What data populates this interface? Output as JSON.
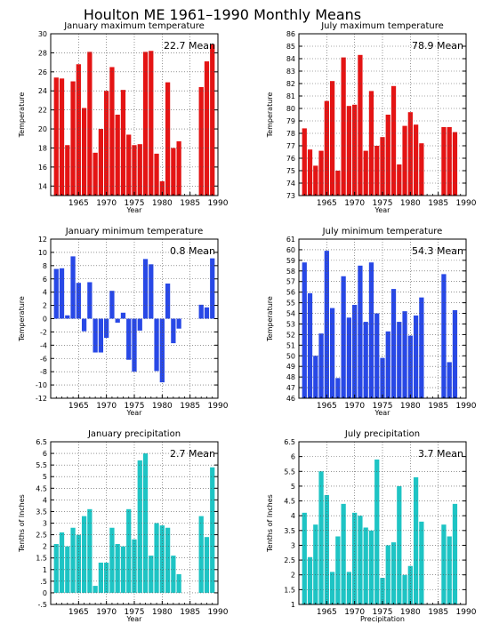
{
  "page_title": "Houlton ME   1961–1990 Monthly Means",
  "chart_data": [
    {
      "type": "bar",
      "title": "January maximum temperature",
      "xlabel": "Year",
      "ylabel": "Temperature",
      "mean_label": "22.7 Mean",
      "color": "#e41414",
      "xlim": [
        1960,
        1990
      ],
      "ylim": [
        13,
        30
      ],
      "yticks": [
        14,
        16,
        18,
        20,
        22,
        24,
        26,
        28,
        30
      ],
      "xticks": [
        1965,
        1970,
        1975,
        1980,
        1985,
        1990
      ],
      "grid": true,
      "x": [
        1961,
        1962,
        1963,
        1964,
        1965,
        1966,
        1967,
        1968,
        1969,
        1970,
        1971,
        1972,
        1973,
        1974,
        1975,
        1976,
        1977,
        1978,
        1979,
        1980,
        1981,
        1982,
        1983,
        1984,
        1985,
        1986,
        1987,
        1988,
        1989,
        1990
      ],
      "values": [
        25.4,
        25.3,
        18.3,
        25.0,
        26.8,
        22.2,
        28.1,
        17.5,
        20.0,
        24.0,
        26.5,
        21.5,
        24.1,
        19.4,
        18.3,
        18.4,
        28.1,
        28.2,
        17.4,
        14.5,
        24.9,
        18.0,
        18.7,
        null,
        null,
        null,
        24.4,
        27.1,
        28.9,
        null
      ]
    },
    {
      "type": "bar",
      "title": "July maximum temperature",
      "xlabel": "Year",
      "ylabel": "Temperature",
      "mean_label": "78.9 Mean",
      "color": "#e41414",
      "xlim": [
        1960,
        1990
      ],
      "ylim": [
        73,
        86
      ],
      "yticks": [
        73,
        74,
        75,
        76,
        77,
        78,
        79,
        80,
        81,
        82,
        83,
        84,
        85,
        86
      ],
      "xticks": [
        1965,
        1970,
        1975,
        1980,
        1985,
        1990
      ],
      "grid": true,
      "x": [
        1961,
        1962,
        1963,
        1964,
        1965,
        1966,
        1967,
        1968,
        1969,
        1970,
        1971,
        1972,
        1973,
        1974,
        1975,
        1976,
        1977,
        1978,
        1979,
        1980,
        1981,
        1982,
        1983,
        1984,
        1985,
        1986,
        1987,
        1988,
        1989,
        1990
      ],
      "values": [
        78.4,
        76.7,
        75.4,
        76.6,
        80.6,
        82.2,
        75.0,
        84.1,
        80.2,
        80.3,
        84.3,
        76.6,
        81.4,
        77.0,
        77.7,
        79.5,
        81.8,
        75.5,
        78.6,
        79.7,
        78.7,
        77.2,
        null,
        null,
        null,
        78.5,
        78.5,
        78.1,
        null,
        null
      ]
    },
    {
      "type": "bar",
      "title": "January minimum temperature",
      "xlabel": "Year",
      "ylabel": "Temperature",
      "mean_label": "0.8 Mean",
      "color": "#2848e6",
      "xlim": [
        1960,
        1990
      ],
      "ylim": [
        -12,
        12
      ],
      "yticks": [
        -12,
        -10,
        -8,
        -6,
        -4,
        -2,
        0,
        2,
        4,
        6,
        8,
        10,
        12
      ],
      "xticks": [
        1965,
        1970,
        1975,
        1980,
        1985,
        1990
      ],
      "grid": true,
      "x": [
        1961,
        1962,
        1963,
        1964,
        1965,
        1966,
        1967,
        1968,
        1969,
        1970,
        1971,
        1972,
        1973,
        1974,
        1975,
        1976,
        1977,
        1978,
        1979,
        1980,
        1981,
        1982,
        1983,
        1984,
        1985,
        1986,
        1987,
        1988,
        1989,
        1990
      ],
      "values": [
        7.5,
        7.6,
        0.5,
        9.4,
        5.4,
        -1.9,
        5.5,
        -5.1,
        -5.1,
        -2.9,
        4.2,
        -0.6,
        0.9,
        -6.2,
        -8.0,
        -1.8,
        9.0,
        8.2,
        -7.9,
        -9.6,
        5.3,
        -3.7,
        -1.5,
        null,
        null,
        null,
        2.1,
        1.7,
        9.1,
        null
      ]
    },
    {
      "type": "bar",
      "title": "July minimum temperature",
      "xlabel": "Year",
      "ylabel": "Temperature",
      "mean_label": "54.3 Mean",
      "color": "#2848e6",
      "xlim": [
        1960,
        1990
      ],
      "ylim": [
        46,
        61
      ],
      "yticks": [
        46,
        47,
        48,
        49,
        50,
        51,
        52,
        53,
        54,
        55,
        56,
        57,
        58,
        59,
        60,
        61
      ],
      "xticks": [
        1965,
        1970,
        1975,
        1980,
        1985,
        1990
      ],
      "grid": true,
      "x": [
        1961,
        1962,
        1963,
        1964,
        1965,
        1966,
        1967,
        1968,
        1969,
        1970,
        1971,
        1972,
        1973,
        1974,
        1975,
        1976,
        1977,
        1978,
        1979,
        1980,
        1981,
        1982,
        1983,
        1984,
        1985,
        1986,
        1987,
        1988,
        1989,
        1990
      ],
      "values": [
        58.8,
        55.9,
        50.0,
        52.1,
        59.9,
        54.5,
        47.9,
        57.5,
        53.6,
        54.8,
        58.5,
        53.2,
        58.8,
        54.0,
        49.8,
        52.3,
        56.3,
        53.2,
        54.2,
        51.9,
        53.8,
        55.5,
        null,
        null,
        null,
        57.7,
        49.4,
        54.3,
        null,
        null
      ]
    },
    {
      "type": "bar",
      "title": "January precipitation",
      "xlabel": "Year",
      "ylabel": "Tenths of Inches",
      "mean_label": "2.7 Mean",
      "color": "#1ec4c4",
      "xlim": [
        1960,
        1990
      ],
      "ylim": [
        -0.5,
        6.5
      ],
      "yticks": [
        -0.5,
        0,
        0.5,
        1,
        1.5,
        2,
        2.5,
        3,
        3.5,
        4,
        4.5,
        5,
        5.5,
        6,
        6.5
      ],
      "xticks": [
        1965,
        1970,
        1975,
        1980,
        1985,
        1990
      ],
      "grid": true,
      "x": [
        1961,
        1962,
        1963,
        1964,
        1965,
        1966,
        1967,
        1968,
        1969,
        1970,
        1971,
        1972,
        1973,
        1974,
        1975,
        1976,
        1977,
        1978,
        1979,
        1980,
        1981,
        1982,
        1983,
        1984,
        1985,
        1986,
        1987,
        1988,
        1989,
        1990
      ],
      "values": [
        2.1,
        2.6,
        2.0,
        2.8,
        2.5,
        3.3,
        3.6,
        0.3,
        1.3,
        1.3,
        2.8,
        2.1,
        2.0,
        3.6,
        2.3,
        5.7,
        6.0,
        1.6,
        3.0,
        2.9,
        2.8,
        1.6,
        0.8,
        null,
        null,
        null,
        3.3,
        2.4,
        5.4,
        null
      ]
    },
    {
      "type": "bar",
      "title": "July precipitation",
      "xlabel": "Precipitation",
      "ylabel": "Tenths of Inches",
      "mean_label": "3.7 Mean",
      "color": "#1ec4c4",
      "xlim": [
        1960,
        1990
      ],
      "ylim": [
        1,
        6.5
      ],
      "yticks": [
        1,
        1.5,
        2,
        2.5,
        3,
        3.5,
        4,
        4.5,
        5,
        5.5,
        6,
        6.5
      ],
      "xticks": [
        1965,
        1970,
        1975,
        1980,
        1985,
        1990
      ],
      "grid": true,
      "x": [
        1961,
        1962,
        1963,
        1964,
        1965,
        1966,
        1967,
        1968,
        1969,
        1970,
        1971,
        1972,
        1973,
        1974,
        1975,
        1976,
        1977,
        1978,
        1979,
        1980,
        1981,
        1982,
        1983,
        1984,
        1985,
        1986,
        1987,
        1988,
        1989,
        1990
      ],
      "values": [
        4.1,
        2.6,
        3.7,
        5.5,
        4.7,
        2.1,
        3.3,
        4.4,
        2.1,
        4.1,
        4.0,
        3.6,
        3.5,
        5.9,
        1.9,
        3.0,
        3.1,
        5.0,
        2.0,
        2.3,
        5.3,
        3.8,
        null,
        null,
        null,
        3.7,
        3.3,
        4.4,
        null,
        null
      ]
    }
  ]
}
